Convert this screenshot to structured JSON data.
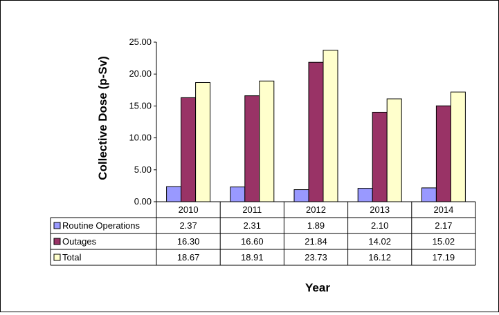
{
  "chart_data": {
    "type": "bar",
    "xlabel": "Year",
    "ylabel": "Collective Dose (p-Sv)",
    "ylim": [
      0,
      25
    ],
    "yticks": [
      "0.00",
      "5.00",
      "10.00",
      "15.00",
      "20.00",
      "25.00"
    ],
    "categories": [
      "2010",
      "2011",
      "2012",
      "2013",
      "2014"
    ],
    "grid": false,
    "legend": "data-table-left",
    "series": [
      {
        "name": "Routine Operations",
        "color": "#9999ff",
        "values": [
          2.37,
          2.31,
          1.89,
          2.1,
          2.17
        ],
        "labels": [
          "2.37",
          "2.31",
          "1.89",
          "2.10",
          "2.17"
        ]
      },
      {
        "name": "Outages",
        "color": "#993366",
        "values": [
          16.3,
          16.6,
          21.84,
          14.02,
          15.02
        ],
        "labels": [
          "16.30",
          "16.60",
          "21.84",
          "14.02",
          "15.02"
        ]
      },
      {
        "name": "Total",
        "color": "#ffffcc",
        "values": [
          18.67,
          18.91,
          23.73,
          16.12,
          17.19
        ],
        "labels": [
          "18.67",
          "18.91",
          "23.73",
          "16.12",
          "17.19"
        ]
      }
    ]
  }
}
